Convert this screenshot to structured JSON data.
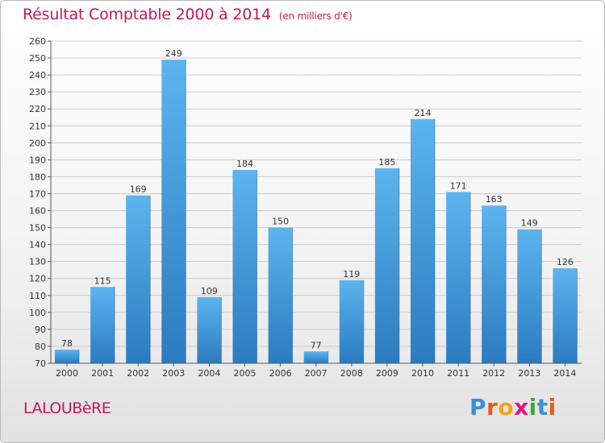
{
  "header": {
    "title": "Résultat Comptable 2000 à 2014",
    "subtitle": "(en milliers d'€)"
  },
  "commune": "LALOUBèRE",
  "logo": {
    "text": "Proxiti",
    "letters": [
      "P",
      "r",
      "o",
      "x",
      "i",
      "t",
      "i"
    ],
    "colors": [
      "#3d8fd1",
      "#e85a1e",
      "#f2a11c",
      "#e0177a",
      "#3daa35",
      "#3d8fd1",
      "#e85a1e"
    ]
  },
  "colors": {
    "bar_top": "#5cb4ee",
    "bar_bottom": "#2b7bc0",
    "title": "#c2185b",
    "grid": "#cccccc"
  },
  "chart_data": {
    "type": "bar",
    "title": "Résultat Comptable 2000 à 2014",
    "subtitle": "(en milliers d'€)",
    "xlabel": "",
    "ylabel": "",
    "categories": [
      "2000",
      "2001",
      "2002",
      "2003",
      "2004",
      "2005",
      "2006",
      "2007",
      "2008",
      "2009",
      "2010",
      "2011",
      "2012",
      "2013",
      "2014"
    ],
    "values": [
      78,
      115,
      169,
      249,
      109,
      184,
      150,
      77,
      119,
      185,
      214,
      171,
      163,
      149,
      126
    ],
    "ylim": [
      70,
      260
    ],
    "yticks": [
      70,
      80,
      90,
      100,
      110,
      120,
      130,
      140,
      150,
      160,
      170,
      180,
      190,
      200,
      210,
      220,
      230,
      240,
      250,
      260
    ],
    "grid": true,
    "legend": "none"
  }
}
